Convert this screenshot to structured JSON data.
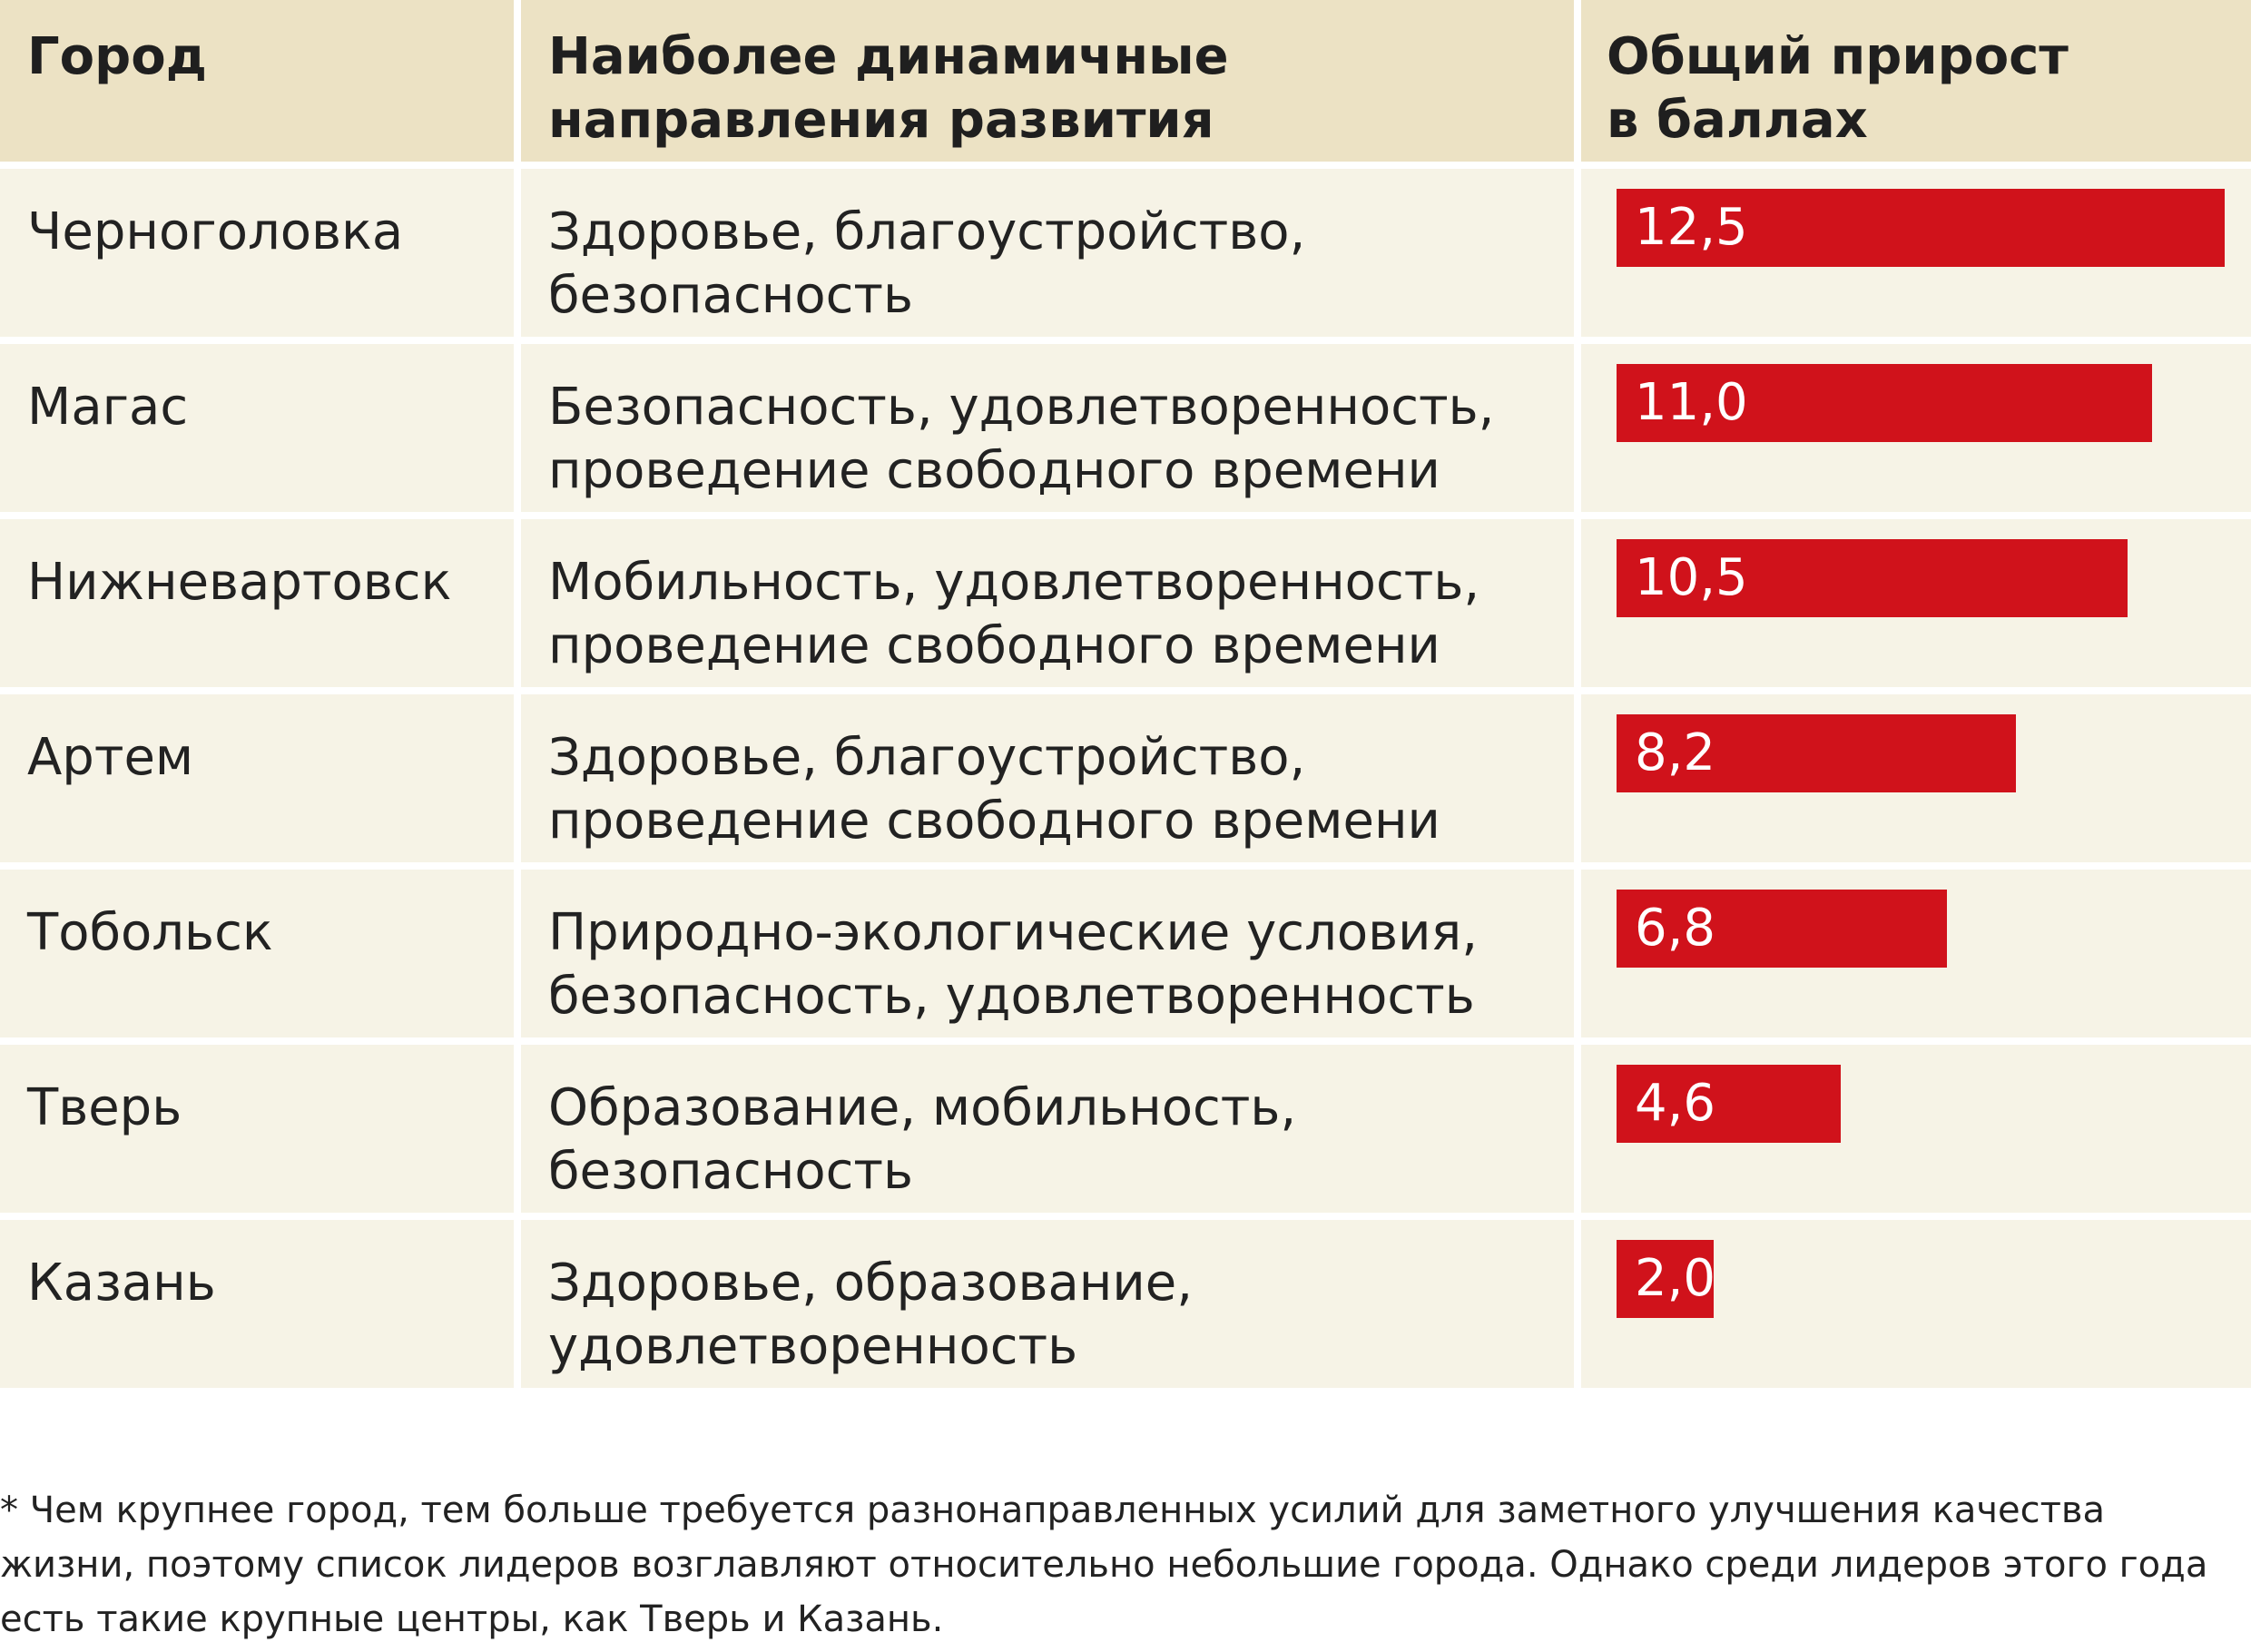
{
  "headers": {
    "city": "Город",
    "directions_line1": "Наиболее динамичные",
    "directions_line2": "направления развития",
    "score_line1": "Общий прирост",
    "score_line2": "в баллах"
  },
  "rows": [
    {
      "city": "Черноголовка",
      "line1": "Здоровье, благоустройство,",
      "line2": "безопасность",
      "label": "12,5"
    },
    {
      "city": "Магас",
      "line1": "Безопасность, удовлетворенность,",
      "line2": "проведение свободного времени",
      "label": "11,0"
    },
    {
      "city": "Нижневартовск",
      "line1": "Мобильность, удовлетворенность,",
      "line2": "проведение свободного времени",
      "label": "10,5"
    },
    {
      "city": "Артем",
      "line1": "Здоровье, благоустройство,",
      "line2": "проведение свободного времени",
      "label": "8,2"
    },
    {
      "city": "Тобольск",
      "line1": "Природно-экологические условия,",
      "line2": "безопасность, удовлетворенность",
      "label": "6,8"
    },
    {
      "city": "Тверь",
      "line1": "Образование, мобильность,",
      "line2": "безопасность",
      "label": "4,6"
    },
    {
      "city": "Казань",
      "line1": "Здоровье, образование,",
      "line2": "удовлетворенность",
      "label": "2,0"
    }
  ],
  "chart_data": {
    "type": "bar",
    "categories": [
      "Черноголовка",
      "Магас",
      "Нижневартовск",
      "Артем",
      "Тобольск",
      "Тверь",
      "Казань"
    ],
    "values": [
      12.5,
      11.0,
      10.5,
      8.2,
      6.8,
      4.6,
      2.0
    ],
    "ylabel": "Общий прирост в баллах",
    "orientation": "horizontal",
    "bar_color": "#d0121b"
  },
  "footnote": {
    "line1": "* Чем крупнее город, тем больше требуется разнонаправленных усилий для заметного улучшения качества",
    "line2": "жизни, поэтому список лидеров возглавляют относительно небольшие города. Однако среди лидеров этого года",
    "line3": "есть такие крупные центры, как Тверь и Казань."
  },
  "colors": {
    "header_bg": "#ece2c4",
    "row_bg": "#f6f3e6",
    "bar": "#d0121b"
  }
}
